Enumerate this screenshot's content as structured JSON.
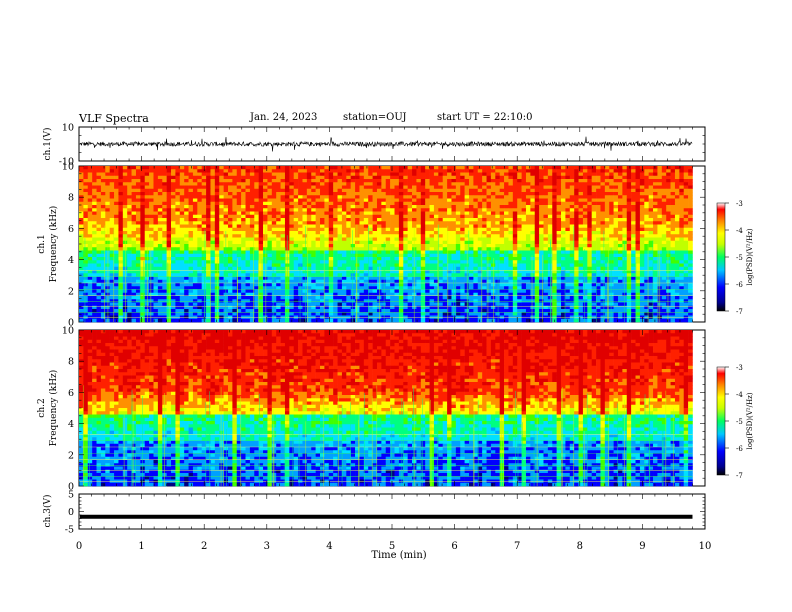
{
  "header": {
    "title": "VLF Spectra",
    "date": "Jan. 24, 2023",
    "station": "station=OUJ",
    "start": "start UT = 22:10:0"
  },
  "chart_data": [
    {
      "type": "line",
      "panel": "ch1-waveform",
      "ylabel": "ch.1(V)",
      "ylim": [
        -10,
        10
      ],
      "yticks": [
        10,
        -10
      ],
      "xlim": [
        0,
        10
      ],
      "series": [
        {
          "baseline": 0
        }
      ]
    },
    {
      "type": "heatmap",
      "panel": "ch1-spectrogram",
      "ylabel": "ch.1 Frequency (kHz)",
      "ylim": [
        0,
        10
      ],
      "yticks": [
        0,
        2,
        4,
        6,
        8,
        10
      ],
      "xlim": [
        0,
        9.8
      ],
      "colorbar": {
        "label": "log(PSD)(V²/Hz)",
        "ticks": [
          -3,
          -4,
          -5,
          -6,
          -7
        ],
        "range": [
          -7,
          -3
        ]
      }
    },
    {
      "type": "heatmap",
      "panel": "ch2-spectrogram",
      "ylabel": "ch.2 Frequency (kHz)",
      "ylim": [
        0,
        10
      ],
      "yticks": [
        0,
        2,
        4,
        6,
        8,
        10
      ],
      "xlim": [
        0,
        9.8
      ],
      "colorbar": {
        "label": "log(PSD)(V²/Hz)",
        "ticks": [
          -3,
          -4,
          -5,
          -6,
          -7
        ],
        "range": [
          -7,
          -3
        ]
      }
    },
    {
      "type": "line",
      "panel": "ch3-waveform",
      "ylabel": "ch.3(V)",
      "ylim": [
        -5,
        5
      ],
      "yticks": [
        5,
        0,
        -5
      ],
      "xlabel": "Time (min)",
      "xlim": [
        0,
        10
      ],
      "xticks": [
        0,
        1,
        2,
        3,
        4,
        5,
        6,
        7,
        8,
        9,
        10
      ],
      "series": [
        {
          "value": -1.5
        }
      ]
    }
  ],
  "colors": {
    "colormap": [
      "#000080",
      "#0000ff",
      "#00a0ff",
      "#00e0ff",
      "#00ff80",
      "#40ff00",
      "#c0ff00",
      "#ffff00",
      "#ff9000",
      "#ff2000",
      "#e00000"
    ]
  }
}
